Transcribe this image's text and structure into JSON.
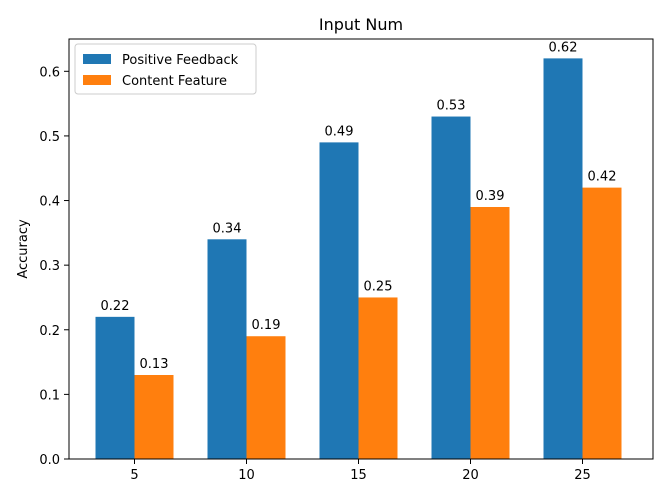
{
  "chart_data": {
    "type": "bar",
    "title": "Input Num",
    "xlabel": "",
    "ylabel": "Accuracy",
    "categories": [
      "5",
      "10",
      "15",
      "20",
      "25"
    ],
    "series": [
      {
        "name": "Positive Feedback",
        "color": "#1f77b4",
        "values": [
          0.22,
          0.34,
          0.49,
          0.53,
          0.62
        ],
        "labels": [
          "0.22",
          "0.34",
          "0.49",
          "0.53",
          "0.62"
        ]
      },
      {
        "name": "Content Feature",
        "color": "#ff7f0e",
        "values": [
          0.13,
          0.19,
          0.25,
          0.39,
          0.42
        ],
        "labels": [
          "0.13",
          "0.19",
          "0.25",
          "0.39",
          "0.42"
        ]
      }
    ],
    "ylim": [
      0,
      0.65
    ],
    "yticks": [
      0.0,
      0.1,
      0.2,
      0.3,
      0.4,
      0.5,
      0.6
    ],
    "ytick_labels": [
      "0.0",
      "0.1",
      "0.2",
      "0.3",
      "0.4",
      "0.5",
      "0.6"
    ],
    "grid": false,
    "legend_position": "top-left"
  }
}
